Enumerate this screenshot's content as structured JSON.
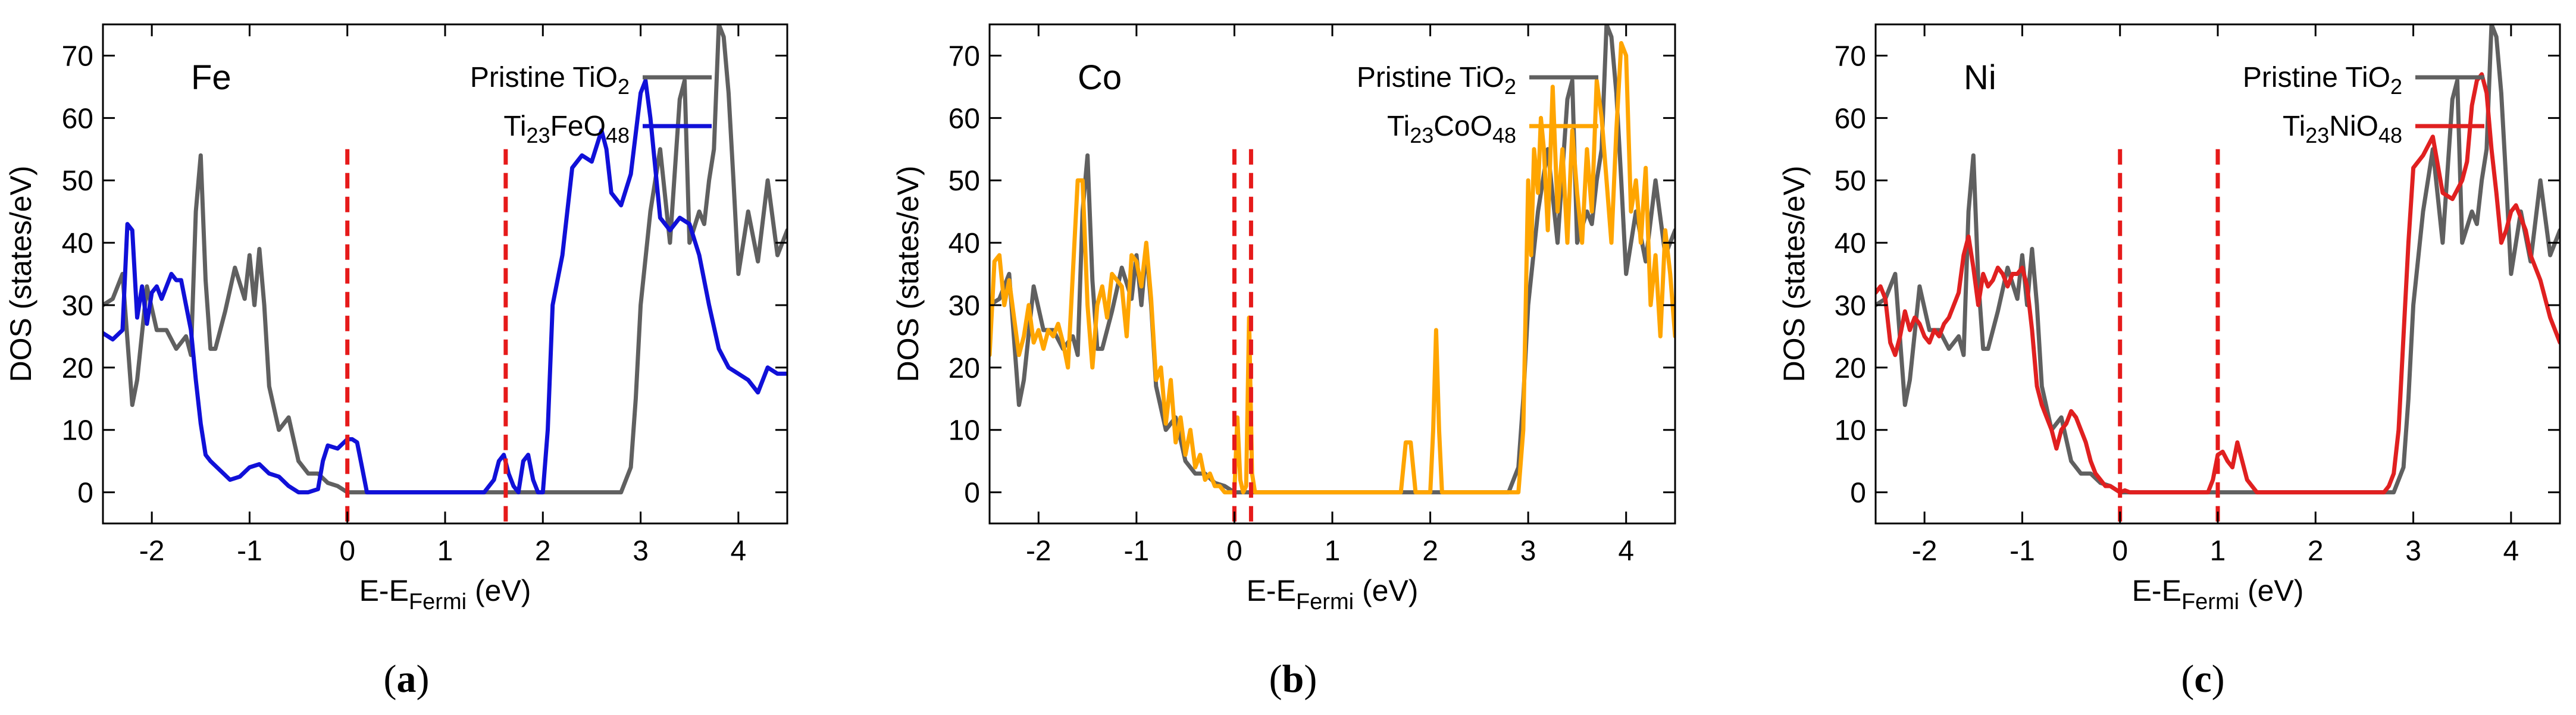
{
  "chart_data": [
    {
      "type": "line",
      "panel_label": "(a)",
      "dopant": "Fe",
      "xlabel": "E-E_Fermi (eV)",
      "ylabel": "DOS (states/eV)",
      "xlim": [
        -2.5,
        4.5
      ],
      "ylim": [
        -5,
        75
      ],
      "xticks": [
        -2,
        -1,
        0,
        1,
        2,
        3,
        4
      ],
      "yticks": [
        0,
        10,
        20,
        30,
        40,
        50,
        60,
        70
      ],
      "fermi_lines": [
        0.0,
        1.62
      ],
      "legend": [
        {
          "base": "Pristine TiO",
          "sub": "2",
          "color": "#606060"
        },
        {
          "base": "Ti",
          "sub": "23",
          "mid": "FeO",
          "sub2": "48",
          "color": "#1010d8"
        }
      ],
      "series": [
        {
          "name": "Pristine TiO2",
          "color": "#606060",
          "x": [
            -2.5,
            -2.4,
            -2.3,
            -2.2,
            -2.15,
            -2.05,
            -1.95,
            -1.85,
            -1.75,
            -1.65,
            -1.6,
            -1.55,
            -1.5,
            -1.45,
            -1.4,
            -1.35,
            -1.25,
            -1.15,
            -1.05,
            -1.0,
            -0.95,
            -0.9,
            -0.85,
            -0.8,
            -0.7,
            -0.6,
            -0.5,
            -0.4,
            -0.3,
            -0.2,
            -0.1,
            0.0,
            0.2,
            1.0,
            2.0,
            2.8,
            2.9,
            2.95,
            3.0,
            3.1,
            3.2,
            3.3,
            3.4,
            3.45,
            3.5,
            3.6,
            3.65,
            3.7,
            3.75,
            3.8,
            3.85,
            3.9,
            3.95,
            4.0,
            4.1,
            4.2,
            4.3,
            4.4,
            4.5
          ],
          "y": [
            30,
            31,
            35,
            14,
            18,
            33,
            26,
            26,
            23,
            25,
            22,
            45,
            54,
            34,
            23,
            23,
            29,
            36,
            31,
            38,
            30,
            39,
            30,
            17,
            10,
            12,
            5,
            3,
            3,
            1.5,
            1,
            0,
            0,
            0,
            0,
            0,
            4,
            15,
            30,
            45,
            55,
            40,
            63,
            66,
            40,
            45,
            43,
            50,
            55,
            75,
            73,
            64,
            50,
            35,
            45,
            37,
            50,
            38,
            42
          ]
        },
        {
          "name": "Ti23FeO48",
          "color": "#1010d8",
          "x": [
            -2.5,
            -2.4,
            -2.3,
            -2.25,
            -2.2,
            -2.15,
            -2.1,
            -2.05,
            -2.0,
            -1.95,
            -1.9,
            -1.85,
            -1.8,
            -1.75,
            -1.7,
            -1.65,
            -1.6,
            -1.55,
            -1.5,
            -1.45,
            -1.4,
            -1.3,
            -1.2,
            -1.1,
            -1.0,
            -0.9,
            -0.8,
            -0.7,
            -0.6,
            -0.5,
            -0.4,
            -0.3,
            -0.25,
            -0.2,
            -0.1,
            0.0,
            0.05,
            0.1,
            0.15,
            0.2,
            1.4,
            1.5,
            1.55,
            1.6,
            1.65,
            1.7,
            1.75,
            1.8,
            1.85,
            1.9,
            1.95,
            2.0,
            2.05,
            2.1,
            2.2,
            2.3,
            2.4,
            2.5,
            2.6,
            2.65,
            2.7,
            2.8,
            2.9,
            3.0,
            3.05,
            3.1,
            3.15,
            3.2,
            3.3,
            3.4,
            3.5,
            3.6,
            3.7,
            3.8,
            3.9,
            4.0,
            4.1,
            4.2,
            4.3,
            4.4,
            4.5
          ],
          "y": [
            25.5,
            24.5,
            26,
            43,
            42,
            28,
            33,
            27,
            32,
            33,
            31,
            33,
            35,
            34,
            34,
            30,
            26,
            18,
            11,
            6,
            5,
            3.5,
            2,
            2.5,
            4,
            4.5,
            3,
            2.5,
            1,
            0,
            0,
            0.5,
            5,
            7.5,
            7,
            8.5,
            8.5,
            8,
            4,
            0,
            0,
            2,
            5,
            6,
            3,
            1,
            0,
            5,
            6,
            2,
            0,
            0,
            10,
            30,
            38,
            52,
            54,
            53,
            58,
            55,
            48,
            46,
            51,
            64,
            66,
            60,
            52,
            44,
            42,
            44,
            43,
            38,
            30,
            23,
            20,
            19,
            18,
            16,
            20,
            19,
            19
          ]
        }
      ]
    },
    {
      "type": "line",
      "panel_label": "(b)",
      "dopant": "Co",
      "xlabel": "E-E_Fermi (eV)",
      "ylabel": "DOS (states/eV)",
      "xlim": [
        -2.5,
        4.5
      ],
      "ylim": [
        -5,
        75
      ],
      "xticks": [
        -2,
        -1,
        0,
        1,
        2,
        3,
        4
      ],
      "yticks": [
        0,
        10,
        20,
        30,
        40,
        50,
        60,
        70
      ],
      "fermi_lines": [
        0.0,
        0.17
      ],
      "legend": [
        {
          "base": "Pristine TiO",
          "sub": "2",
          "color": "#606060"
        },
        {
          "base": "Ti",
          "sub": "23",
          "mid": "CoO",
          "sub2": "48",
          "color": "#ffa500"
        }
      ],
      "series": [
        {
          "name": "Pristine TiO2",
          "color": "#606060",
          "x": [
            -2.5,
            -2.4,
            -2.3,
            -2.2,
            -2.15,
            -2.05,
            -1.95,
            -1.85,
            -1.75,
            -1.65,
            -1.6,
            -1.55,
            -1.5,
            -1.45,
            -1.4,
            -1.35,
            -1.25,
            -1.15,
            -1.05,
            -1.0,
            -0.95,
            -0.9,
            -0.85,
            -0.8,
            -0.7,
            -0.6,
            -0.5,
            -0.4,
            -0.3,
            -0.2,
            -0.1,
            0.0,
            0.2,
            1.0,
            2.0,
            2.8,
            2.9,
            2.95,
            3.0,
            3.1,
            3.2,
            3.3,
            3.4,
            3.45,
            3.5,
            3.6,
            3.65,
            3.7,
            3.75,
            3.8,
            3.85,
            3.9,
            3.95,
            4.0,
            4.1,
            4.2,
            4.3,
            4.4,
            4.5
          ],
          "y": [
            30,
            31,
            35,
            14,
            18,
            33,
            26,
            26,
            23,
            25,
            22,
            45,
            54,
            34,
            23,
            23,
            29,
            36,
            31,
            38,
            30,
            39,
            30,
            17,
            10,
            12,
            5,
            3,
            3,
            1.5,
            1,
            0,
            0,
            0,
            0,
            0,
            4,
            15,
            30,
            45,
            55,
            40,
            63,
            66,
            40,
            45,
            43,
            50,
            55,
            75,
            73,
            64,
            50,
            35,
            45,
            37,
            50,
            38,
            42
          ]
        },
        {
          "name": "Ti23CoO48",
          "color": "#ffa500",
          "x": [
            -2.5,
            -2.45,
            -2.4,
            -2.35,
            -2.3,
            -2.25,
            -2.2,
            -2.15,
            -2.1,
            -2.05,
            -2.0,
            -1.95,
            -1.9,
            -1.85,
            -1.8,
            -1.75,
            -1.7,
            -1.65,
            -1.6,
            -1.55,
            -1.5,
            -1.45,
            -1.4,
            -1.35,
            -1.3,
            -1.25,
            -1.2,
            -1.15,
            -1.1,
            -1.05,
            -1.0,
            -0.95,
            -0.9,
            -0.85,
            -0.8,
            -0.75,
            -0.7,
            -0.65,
            -0.6,
            -0.55,
            -0.5,
            -0.45,
            -0.4,
            -0.35,
            -0.3,
            -0.25,
            -0.2,
            -0.15,
            -0.1,
            -0.05,
            0.0,
            0.03,
            0.06,
            0.09,
            0.12,
            0.15,
            0.18,
            0.21,
            0.24,
            0.3,
            1.65,
            1.7,
            1.75,
            1.8,
            1.85,
            1.9,
            1.95,
            2.0,
            2.03,
            2.06,
            2.09,
            2.12,
            2.2,
            2.85,
            2.9,
            2.95,
            3.0,
            3.03,
            3.06,
            3.1,
            3.13,
            3.16,
            3.2,
            3.25,
            3.3,
            3.35,
            3.4,
            3.45,
            3.5,
            3.55,
            3.6,
            3.65,
            3.7,
            3.75,
            3.8,
            3.85,
            3.9,
            3.95,
            4.0,
            4.05,
            4.1,
            4.15,
            4.2,
            4.25,
            4.3,
            4.35,
            4.4,
            4.45,
            4.5
          ],
          "y": [
            22,
            37,
            38,
            30,
            34,
            28,
            22,
            25,
            30,
            24,
            26,
            23,
            26,
            25,
            27,
            24,
            20,
            35,
            50,
            50,
            30,
            20,
            30,
            33,
            28,
            35,
            34,
            33,
            25,
            38,
            37,
            33,
            40,
            31,
            18,
            20,
            11,
            18,
            8,
            12,
            6,
            10,
            4,
            6,
            2,
            3,
            1,
            1,
            0,
            0,
            0,
            12,
            2,
            0,
            1,
            28,
            3,
            0,
            0,
            0,
            0,
            0,
            8,
            8,
            0,
            0,
            0,
            0,
            10,
            26,
            10,
            0,
            0,
            0,
            0,
            10,
            50,
            38,
            55,
            48,
            60,
            55,
            42,
            65,
            45,
            55,
            40,
            58,
            48,
            40,
            55,
            45,
            66,
            60,
            50,
            40,
            58,
            72,
            70,
            45,
            50,
            40,
            52,
            30,
            38,
            25,
            42,
            35,
            25
          ]
        }
      ]
    },
    {
      "type": "line",
      "panel_label": "(c)",
      "dopant": "Ni",
      "xlabel": "E-E_Fermi (eV)",
      "ylabel": "DOS (states/eV)",
      "xlim": [
        -2.5,
        4.5
      ],
      "ylim": [
        -5,
        75
      ],
      "xticks": [
        -2,
        -1,
        0,
        1,
        2,
        3,
        4
      ],
      "yticks": [
        0,
        10,
        20,
        30,
        40,
        50,
        60,
        70
      ],
      "fermi_lines": [
        0.0,
        1.0
      ],
      "legend": [
        {
          "base": "Pristine TiO",
          "sub": "2",
          "color": "#606060"
        },
        {
          "base": "Ti",
          "sub": "23",
          "mid": "NiO",
          "sub2": "48",
          "color": "#e02020"
        }
      ],
      "series": [
        {
          "name": "Pristine TiO2",
          "color": "#606060",
          "x": [
            -2.5,
            -2.4,
            -2.3,
            -2.2,
            -2.15,
            -2.05,
            -1.95,
            -1.85,
            -1.75,
            -1.65,
            -1.6,
            -1.55,
            -1.5,
            -1.45,
            -1.4,
            -1.35,
            -1.25,
            -1.15,
            -1.05,
            -1.0,
            -0.95,
            -0.9,
            -0.85,
            -0.8,
            -0.7,
            -0.6,
            -0.5,
            -0.4,
            -0.3,
            -0.2,
            -0.1,
            0.0,
            0.2,
            1.0,
            2.0,
            2.8,
            2.9,
            2.95,
            3.0,
            3.1,
            3.2,
            3.3,
            3.4,
            3.45,
            3.5,
            3.6,
            3.65,
            3.7,
            3.75,
            3.8,
            3.85,
            3.9,
            3.95,
            4.0,
            4.1,
            4.2,
            4.3,
            4.4,
            4.5
          ],
          "y": [
            30,
            31,
            35,
            14,
            18,
            33,
            26,
            26,
            23,
            25,
            22,
            45,
            54,
            34,
            23,
            23,
            29,
            36,
            31,
            38,
            30,
            39,
            30,
            17,
            10,
            12,
            5,
            3,
            3,
            1.5,
            1,
            0,
            0,
            0,
            0,
            0,
            4,
            15,
            30,
            45,
            55,
            40,
            63,
            66,
            40,
            45,
            43,
            50,
            55,
            75,
            73,
            64,
            50,
            35,
            45,
            37,
            50,
            38,
            42
          ]
        },
        {
          "name": "Ti23NiO48",
          "color": "#e02020",
          "x": [
            -2.5,
            -2.45,
            -2.4,
            -2.35,
            -2.3,
            -2.25,
            -2.2,
            -2.15,
            -2.1,
            -2.05,
            -2.0,
            -1.95,
            -1.9,
            -1.85,
            -1.8,
            -1.75,
            -1.7,
            -1.65,
            -1.6,
            -1.55,
            -1.5,
            -1.45,
            -1.4,
            -1.35,
            -1.3,
            -1.25,
            -1.2,
            -1.15,
            -1.1,
            -1.05,
            -1.0,
            -0.95,
            -0.9,
            -0.85,
            -0.8,
            -0.75,
            -0.7,
            -0.65,
            -0.6,
            -0.55,
            -0.5,
            -0.45,
            -0.4,
            -0.35,
            -0.3,
            -0.25,
            -0.2,
            -0.15,
            -0.1,
            -0.05,
            0.0,
            0.05,
            0.1,
            0.2,
            0.8,
            0.9,
            0.95,
            1.0,
            1.05,
            1.1,
            1.15,
            1.2,
            1.25,
            1.3,
            1.35,
            1.4,
            1.45,
            1.5,
            2.6,
            2.7,
            2.75,
            2.8,
            2.85,
            2.9,
            2.95,
            3.0,
            3.05,
            3.1,
            3.2,
            3.3,
            3.4,
            3.5,
            3.55,
            3.6,
            3.65,
            3.7,
            3.75,
            3.8,
            3.85,
            3.9,
            3.95,
            4.0,
            4.05,
            4.1,
            4.15,
            4.2,
            4.3,
            4.4,
            4.5
          ],
          "y": [
            32,
            33,
            31,
            24,
            22,
            25,
            29,
            26,
            28,
            27,
            25,
            24,
            26,
            25,
            27,
            28,
            30,
            32,
            38,
            41,
            36,
            30,
            35,
            33,
            34,
            36,
            35,
            33,
            35,
            35,
            36,
            33,
            26,
            17,
            14,
            12,
            10,
            7,
            10,
            11,
            13,
            12,
            10,
            8,
            5,
            3,
            2,
            1,
            1,
            0.5,
            0,
            0.3,
            0,
            0,
            0,
            0,
            2,
            6,
            6.5,
            5,
            4,
            8,
            5,
            2,
            1,
            0,
            0,
            0,
            0,
            0,
            1,
            3,
            10,
            25,
            40,
            52,
            53,
            54,
            57,
            48,
            47,
            50,
            53,
            62,
            66,
            67,
            64,
            55,
            48,
            40,
            42,
            45,
            46,
            44,
            42,
            38,
            34,
            28,
            24
          ]
        }
      ]
    }
  ]
}
